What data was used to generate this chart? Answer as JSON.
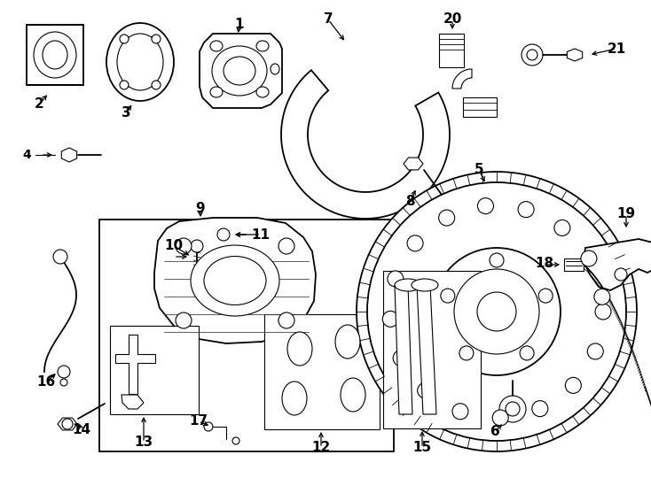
{
  "bg_color": "#ffffff",
  "line_color": "#000000",
  "lw_main": 1.3,
  "lw_thin": 0.8,
  "figsize": [
    7.34,
    5.4
  ],
  "dpi": 100
}
